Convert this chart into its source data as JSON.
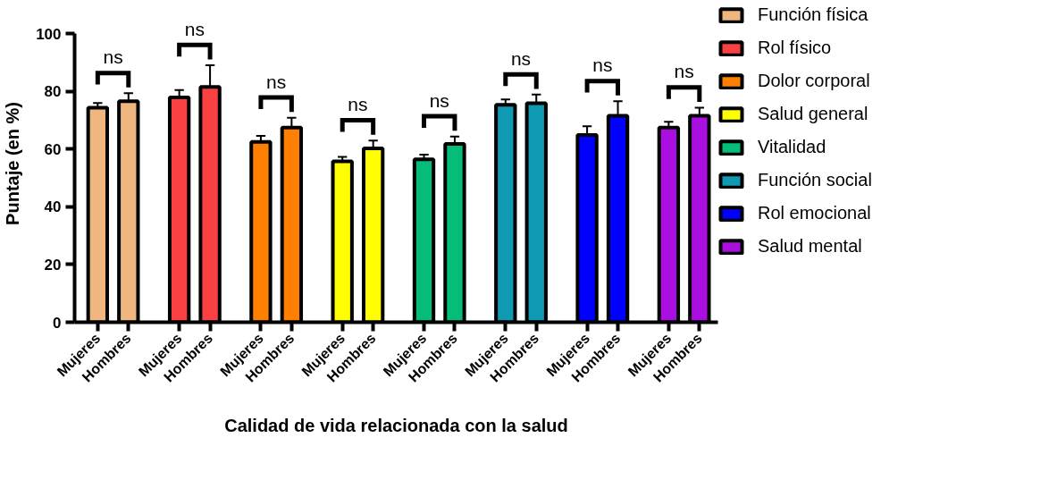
{
  "chart_data": {
    "type": "bar",
    "xlabel": "Calidad de vida relacionada con la salud",
    "ylabel": "Puntaje (en %)",
    "categories": [
      "Mujeres",
      "Hombres",
      "Mujeres",
      "Hombres",
      "Mujeres",
      "Hombres",
      "Mujeres",
      "Hombres",
      "Mujeres",
      "Hombres",
      "Mujeres",
      "Hombres",
      "Mujeres",
      "Hombres",
      "Mujeres",
      "Hombres"
    ],
    "ylim": [
      0,
      100
    ],
    "yticks": [
      0,
      20,
      40,
      60,
      80,
      100
    ],
    "grid": false,
    "legend": "right",
    "series": [
      {
        "name": "Función física",
        "color": "#f0b67f",
        "values": [
          74.4,
          76.6,
          null,
          null,
          null,
          null,
          null,
          null,
          null,
          null,
          null,
          null,
          null,
          null,
          null,
          null
        ],
        "errors": [
          [
            74.4,
            76.0
          ],
          [
            76.6,
            79.4
          ],
          null,
          null,
          null,
          null,
          null,
          null,
          null,
          null,
          null,
          null,
          null,
          null,
          null,
          null
        ]
      },
      {
        "name": "Rol físico",
        "color": "#f94144",
        "values": [
          null,
          null,
          77.9,
          81.6,
          null,
          null,
          null,
          null,
          null,
          null,
          null,
          null,
          null,
          null,
          null,
          null
        ],
        "errors": [
          null,
          null,
          [
            77.9,
            80.5
          ],
          [
            81.6,
            89.1
          ],
          null,
          null,
          null,
          null,
          null,
          null,
          null,
          null,
          null,
          null,
          null,
          null
        ]
      },
      {
        "name": "Dolor corporal",
        "color": "#ff8000",
        "values": [
          null,
          null,
          null,
          null,
          62.5,
          67.5,
          null,
          null,
          null,
          null,
          null,
          null,
          null,
          null,
          null,
          null
        ],
        "errors": [
          null,
          null,
          null,
          null,
          [
            62.5,
            64.6
          ],
          [
            67.5,
            70.9
          ],
          null,
          null,
          null,
          null,
          null,
          null,
          null,
          null,
          null,
          null
        ]
      },
      {
        "name": "Salud general",
        "color": "#ffff00",
        "values": [
          null,
          null,
          null,
          null,
          null,
          null,
          55.8,
          60.3,
          null,
          null,
          null,
          null,
          null,
          null,
          null,
          null
        ],
        "errors": [
          null,
          null,
          null,
          null,
          null,
          null,
          [
            55.8,
            57.3
          ],
          [
            60.3,
            63.0
          ],
          null,
          null,
          null,
          null,
          null,
          null,
          null,
          null
        ]
      },
      {
        "name": "Vitalidad",
        "color": "#05bd78",
        "values": [
          null,
          null,
          null,
          null,
          null,
          null,
          null,
          null,
          56.5,
          61.8,
          null,
          null,
          null,
          null,
          null,
          null
        ],
        "errors": [
          null,
          null,
          null,
          null,
          null,
          null,
          null,
          null,
          [
            56.5,
            58.1
          ],
          [
            61.8,
            64.4
          ],
          null,
          null,
          null,
          null,
          null,
          null
        ]
      },
      {
        "name": "Función social",
        "color": "#0f99b3",
        "values": [
          null,
          null,
          null,
          null,
          null,
          null,
          null,
          null,
          null,
          null,
          75.4,
          75.9,
          null,
          null,
          null,
          null
        ],
        "errors": [
          null,
          null,
          null,
          null,
          null,
          null,
          null,
          null,
          null,
          null,
          [
            75.4,
            77.2
          ],
          [
            75.9,
            78.9
          ],
          null,
          null,
          null,
          null
        ]
      },
      {
        "name": "Rol emocional",
        "color": "#0000ff",
        "values": [
          null,
          null,
          null,
          null,
          null,
          null,
          null,
          null,
          null,
          null,
          null,
          null,
          64.9,
          71.6,
          null,
          null
        ],
        "errors": [
          null,
          null,
          null,
          null,
          null,
          null,
          null,
          null,
          null,
          null,
          null,
          null,
          [
            64.9,
            67.9
          ],
          [
            71.6,
            76.6
          ],
          null,
          null
        ]
      },
      {
        "name": "Salud mental",
        "color": "#ab0ee0",
        "values": [
          null,
          null,
          null,
          null,
          null,
          null,
          null,
          null,
          null,
          null,
          null,
          null,
          null,
          null,
          67.5,
          71.6
        ],
        "errors": [
          null,
          null,
          null,
          null,
          null,
          null,
          null,
          null,
          null,
          null,
          null,
          null,
          null,
          null,
          [
            67.5,
            69.5
          ],
          [
            71.6,
            74.4
          ]
        ]
      }
    ],
    "annotations": [
      "ns",
      "ns",
      "ns",
      "ns",
      "ns",
      "ns",
      "ns",
      "ns"
    ]
  }
}
